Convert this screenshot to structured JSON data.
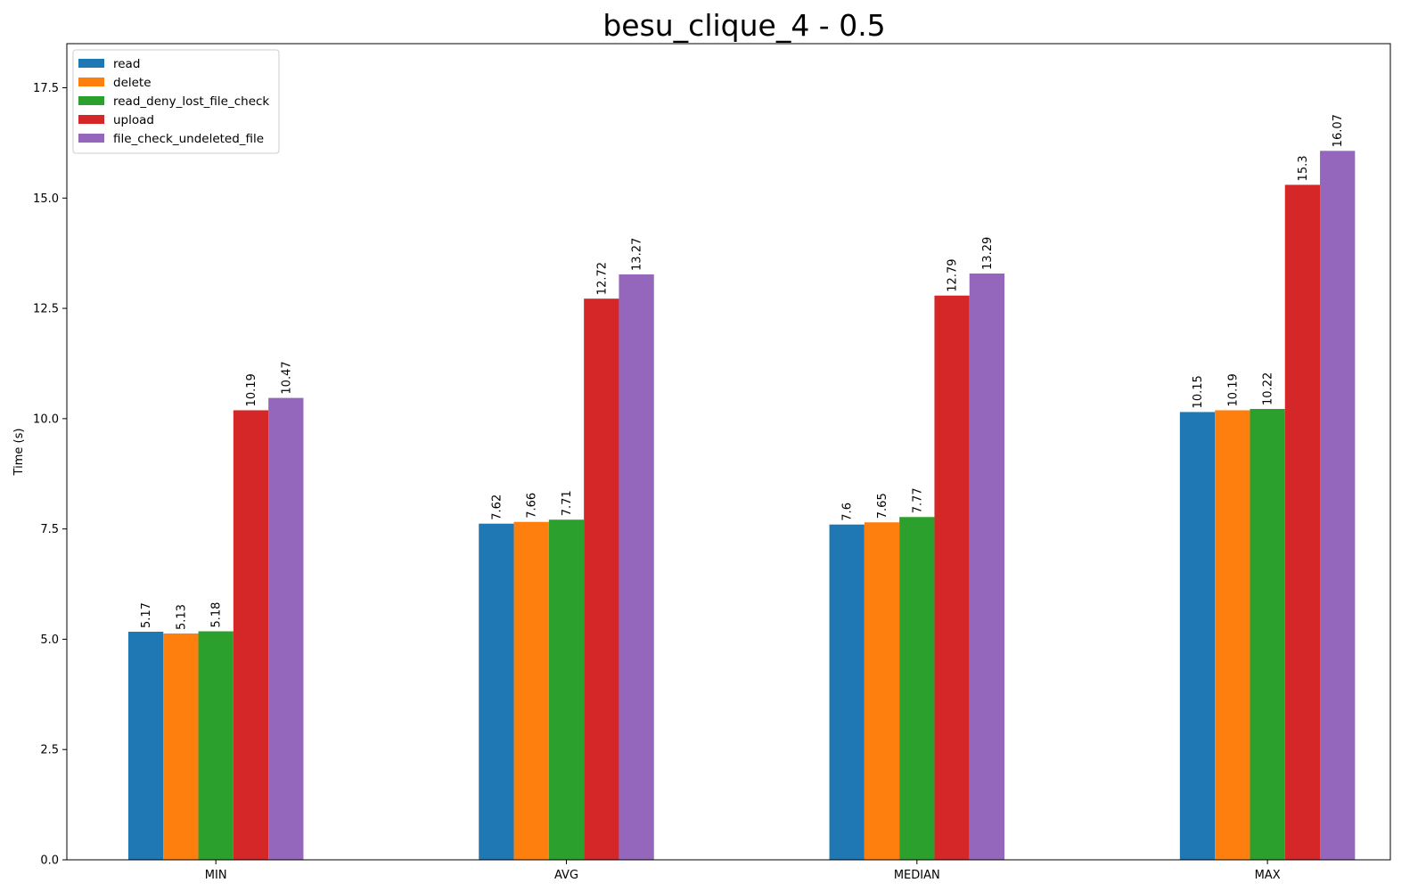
{
  "chart_data": {
    "type": "bar",
    "title": "besu_clique_4 - 0.5",
    "xlabel": "",
    "ylabel": "Time (s)",
    "ylim": [
      0,
      18.5
    ],
    "yticks": [
      0.0,
      2.5,
      5.0,
      7.5,
      10.0,
      12.5,
      15.0,
      17.5
    ],
    "ytick_labels": [
      "0.0",
      "2.5",
      "5.0",
      "7.5",
      "10.0",
      "12.5",
      "15.0",
      "17.5"
    ],
    "categories": [
      "MIN",
      "AVG",
      "MEDIAN",
      "MAX"
    ],
    "series": [
      {
        "name": "read",
        "color": "#1f77b4",
        "values": [
          5.17,
          7.62,
          7.6,
          10.15
        ],
        "labels": [
          "5.17",
          "7.62",
          "7.6",
          "10.15"
        ]
      },
      {
        "name": "delete",
        "color": "#ff7f0e",
        "values": [
          5.13,
          7.66,
          7.65,
          10.19
        ],
        "labels": [
          "5.13",
          "7.66",
          "7.65",
          "10.19"
        ]
      },
      {
        "name": "read_deny_lost_file_check",
        "color": "#2ca02c",
        "values": [
          5.18,
          7.71,
          7.77,
          10.22
        ],
        "labels": [
          "5.18",
          "7.71",
          "7.77",
          "10.22"
        ]
      },
      {
        "name": "upload",
        "color": "#d62728",
        "values": [
          10.19,
          12.72,
          12.79,
          15.3
        ],
        "labels": [
          "10.19",
          "12.72",
          "12.79",
          "15.3"
        ]
      },
      {
        "name": "file_check_undeleted_file",
        "color": "#9467bd",
        "values": [
          10.47,
          13.27,
          13.29,
          16.07
        ],
        "labels": [
          "10.47",
          "13.27",
          "13.29",
          "16.07"
        ]
      }
    ],
    "grid": false,
    "legend_position": "top-left"
  }
}
